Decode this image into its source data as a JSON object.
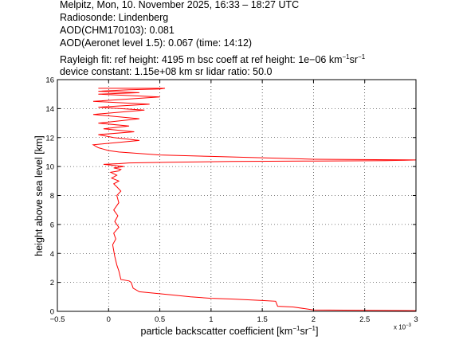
{
  "header": {
    "line1": "Melpitz, Mon, 10. November 2025, 16:33 – 18:27 UTC",
    "line2": "Radiosonde: Lindenberg",
    "line3": "AOD(CHM170103): 0.081",
    "line4": "AOD(Aeronet level 1.5): 0.067   (time: 14:12)",
    "line5a": "Rayleigh fit:     ref height: 4195 m     bsc coeff at ref height: 1e−06 km",
    "line5_sup1": "−1",
    "line5b": "sr",
    "line5_sup2": "−1",
    "line6": "device constant: 1.15e+08 km sr     lidar ratio: 50.0"
  },
  "axes": {
    "xlabel_a": "particle backscatter coefficient [km",
    "xlabel_sup1": "−1",
    "xlabel_b": "sr",
    "xlabel_sup2": "−1",
    "xlabel_c": "]",
    "ylabel": "height above sea level [km]",
    "x_multiplier_base": "x 10",
    "x_multiplier_exp": "−3"
  },
  "chart_data": {
    "type": "line",
    "xlim": [
      -0.5,
      3.0
    ],
    "ylim": [
      0,
      16
    ],
    "x_ticks": [
      -0.5,
      0,
      0.5,
      1,
      1.5,
      2,
      2.5,
      3
    ],
    "x_tick_labels": [
      "−0.5",
      "0",
      "0.5",
      "1",
      "1.5",
      "2",
      "2.5",
      "3"
    ],
    "y_ticks": [
      0,
      2,
      4,
      6,
      8,
      10,
      12,
      14,
      16
    ],
    "y_tick_labels": [
      "0",
      "2",
      "4",
      "6",
      "8",
      "10",
      "12",
      "14",
      "16"
    ],
    "grid": true,
    "series_color": "#ff0000",
    "series": [
      {
        "x": [
          3.0,
          2.0,
          1.8,
          1.65,
          1.63,
          1.5,
          1.2,
          1.0,
          0.8,
          0.6,
          0.45,
          0.3,
          0.24,
          0.22,
          0.2,
          0.12,
          0.1,
          0.08,
          0.06,
          0.05,
          0.04,
          0.07,
          0.05,
          0.1,
          0.06,
          0.09,
          0.05,
          0.1,
          0.08,
          0.12,
          0.08,
          0.05,
          0.1,
          0.03,
          0.08,
          0.02,
          0.1,
          0.12,
          0.05,
          0.15,
          0.02,
          -0.05,
          0.1,
          0.2,
          0.6,
          1.2,
          2.0,
          2.7,
          3.0,
          2.0,
          1.0,
          0.5,
          0.3,
          0.1,
          0.0,
          -0.1,
          -0.15,
          0.3,
          0.05,
          -0.1,
          0.25,
          -0.05,
          0.2,
          -0.1,
          0.3,
          -0.15,
          0.35,
          -0.1,
          0.4,
          -0.15,
          0.5,
          -0.1,
          0.3,
          -0.1,
          0.2,
          0.5,
          0.55,
          -0.1
        ],
        "y": [
          0.05,
          0.1,
          0.3,
          0.35,
          0.7,
          0.75,
          0.85,
          0.9,
          1.0,
          1.15,
          1.25,
          1.35,
          1.6,
          2.0,
          2.1,
          2.2,
          2.8,
          3.2,
          3.8,
          4.2,
          4.6,
          5.0,
          5.4,
          5.8,
          6.2,
          6.6,
          7.0,
          7.5,
          8.0,
          8.3,
          8.6,
          8.8,
          9.0,
          9.2,
          9.4,
          9.6,
          9.7,
          9.8,
          9.9,
          10.0,
          10.1,
          10.15,
          10.2,
          10.25,
          10.3,
          10.35,
          10.38,
          10.4,
          10.45,
          10.5,
          10.7,
          10.8,
          10.9,
          11.0,
          11.1,
          11.3,
          11.5,
          11.8,
          12.0,
          12.2,
          12.4,
          12.6,
          12.8,
          13.0,
          13.3,
          13.6,
          13.9,
          14.1,
          14.3,
          14.5,
          14.8,
          15.0,
          15.1,
          15.2,
          15.3,
          15.35,
          15.4,
          15.4
        ]
      }
    ]
  }
}
